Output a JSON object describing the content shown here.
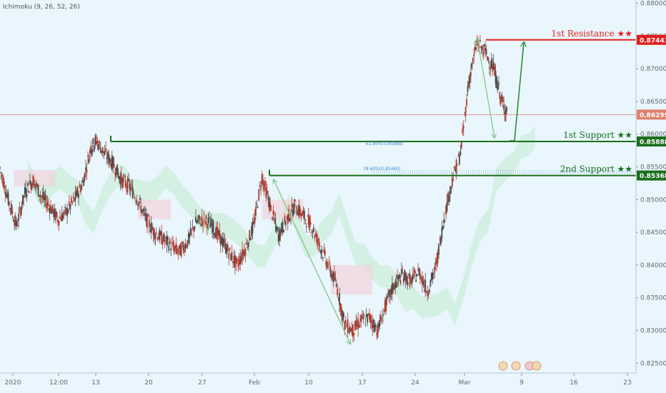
{
  "indicator": {
    "label": "Ichimoku (9, 26, 52, 26)"
  },
  "colors": {
    "background": "#e9f6fe",
    "up_candle": "#4a4a4a",
    "down_candle": "#b03a2e",
    "resistance": "#e01e1e",
    "support": "#1b6e1b",
    "current_price_line": "#e07f6a",
    "arrow": "#7cc47a",
    "cloud_bull": "#b9e8c4",
    "cloud_bear": "#f4cfd3",
    "fib": "#3c8ad6"
  },
  "chart_data": {
    "type": "candlestick",
    "symbol": "",
    "ylim": [
      0.8235,
      0.8805
    ],
    "price_axis_ticks": [
      "0.88000",
      "0.87500",
      "0.87000",
      "0.86500",
      "0.86000",
      "0.85500",
      "0.85000",
      "0.84500",
      "0.84000",
      "0.83500",
      "0.83000",
      "0.82500"
    ],
    "time_axis_ticks": [
      "2020",
      "12:00",
      "13",
      "20",
      "27",
      "Feb",
      "10",
      "17",
      "24",
      "Mar",
      "9",
      "16",
      "23"
    ],
    "close_path": [
      [
        0,
        0.8548
      ],
      [
        0.03,
        0.85
      ],
      [
        0.06,
        0.846
      ],
      [
        0.09,
        0.851
      ],
      [
        0.12,
        0.853
      ],
      [
        0.15,
        0.8505
      ],
      [
        0.18,
        0.849
      ],
      [
        0.21,
        0.847
      ],
      [
        0.24,
        0.848
      ],
      [
        0.27,
        0.85
      ],
      [
        0.3,
        0.8525
      ],
      [
        0.33,
        0.858
      ],
      [
        0.35,
        0.859
      ],
      [
        0.38,
        0.857
      ],
      [
        0.41,
        0.8555
      ],
      [
        0.44,
        0.853
      ],
      [
        0.47,
        0.852
      ],
      [
        0.5,
        0.85
      ],
      [
        0.53,
        0.847
      ],
      [
        0.56,
        0.845
      ],
      [
        0.59,
        0.844
      ],
      [
        0.62,
        0.843
      ],
      [
        0.65,
        0.842
      ],
      [
        0.68,
        0.8435
      ],
      [
        0.71,
        0.8465
      ],
      [
        0.74,
        0.847
      ],
      [
        0.77,
        0.846
      ],
      [
        0.8,
        0.844
      ],
      [
        0.83,
        0.842
      ],
      [
        0.86,
        0.84
      ],
      [
        0.89,
        0.8425
      ],
      [
        0.92,
        0.846
      ],
      [
        0.95,
        0.8535
      ],
      [
        0.98,
        0.849
      ],
      [
        1.01,
        0.8445
      ],
      [
        1.04,
        0.847
      ],
      [
        1.07,
        0.849
      ],
      [
        1.1,
        0.8475
      ],
      [
        1.13,
        0.846
      ],
      [
        1.16,
        0.843
      ],
      [
        1.19,
        0.84
      ],
      [
        1.22,
        0.837
      ],
      [
        1.25,
        0.831
      ],
      [
        1.28,
        0.83
      ],
      [
        1.31,
        0.8315
      ],
      [
        1.34,
        0.832
      ],
      [
        1.37,
        0.83
      ],
      [
        1.4,
        0.834
      ],
      [
        1.43,
        0.837
      ],
      [
        1.46,
        0.8385
      ],
      [
        1.49,
        0.8375
      ],
      [
        1.52,
        0.839
      ],
      [
        1.55,
        0.836
      ],
      [
        1.58,
        0.8395
      ],
      [
        1.61,
        0.847
      ],
      [
        1.64,
        0.853
      ],
      [
        1.67,
        0.857
      ],
      [
        1.7,
        0.868
      ],
      [
        1.73,
        0.874
      ],
      [
        1.76,
        0.8725
      ],
      [
        1.79,
        0.87
      ],
      [
        1.82,
        0.865
      ],
      [
        1.84,
        0.863
      ]
    ],
    "levels": [
      {
        "name": "1st Resistance ★★",
        "price": 0.87441,
        "label": "0.87441",
        "color": "#e01e1e"
      },
      {
        "name": "1st Support ★★",
        "price": 0.85888,
        "label": "0.85888",
        "color": "#1b6e1b"
      },
      {
        "name": "2nd Support ★★",
        "price": 0.85368,
        "label": "0.85368",
        "color": "#1b6e1b"
      }
    ],
    "current_price": {
      "price": 0.86299,
      "label": "0.86299"
    },
    "fib_labels": [
      "61.80%(0.85888)",
      "78.60%(0.85440)"
    ],
    "grid": false
  }
}
